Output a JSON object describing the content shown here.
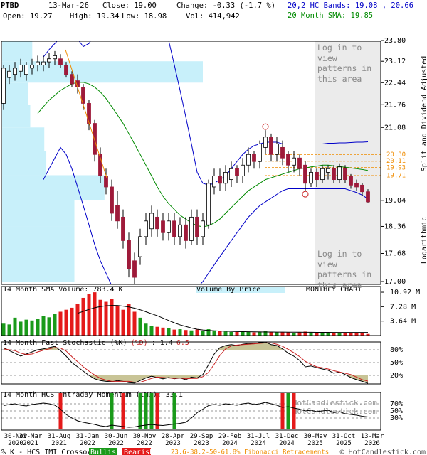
{
  "header": {
    "symbol": "PTBD",
    "date": "13-Mar-26",
    "close": "Close: 19.00",
    "change": "Change: -0.33 (-1.7 %)",
    "open": "Open: 19.27",
    "high": "High: 19.34",
    "low": "Low: 18.98",
    "volume": "Vol: 414,942",
    "bands_legend": "20,2 HC Bands: 19.08 , 20.66",
    "sma_legend": "20 Month SMA: 19.85",
    "adjusted": "Split and Dividend Adjusted",
    "scale": "Logarithmic"
  },
  "footer": {
    "crossover": "% K - HCS IMI Crossover,",
    "bullish": "Bullish",
    "bearish": "Bearish",
    "fibonacci": "23.6-38.2-50-61.8% Fibonacci Retracements",
    "copyright": "© HotCandlestick.com"
  },
  "chart_data": [
    {
      "type": "candlestick",
      "x": [
        "30-Nov 2020",
        null,
        null,
        null,
        "31-Mar 2021",
        null,
        null,
        null,
        null,
        "31-Aug 2021",
        null,
        null,
        null,
        null,
        "31-Jan 2022",
        null,
        null,
        null,
        null,
        "30-Jun 2022",
        null,
        null,
        null,
        null,
        "30-Nov 2022",
        null,
        null,
        null,
        null,
        "28-Apr 2023",
        null,
        null,
        null,
        null,
        "29-Sep 2023",
        null,
        null,
        null,
        null,
        "29-Feb 2024",
        null,
        null,
        null,
        null,
        "31-Jul 2024",
        null,
        null,
        null,
        null,
        "31-Dec 2024",
        null,
        null,
        null,
        null,
        "30-May 2025",
        null,
        null,
        null,
        null,
        "31-Oct 2025",
        null,
        null,
        null,
        null,
        "13-Mar 2026"
      ],
      "open": [
        21.8,
        22.6,
        22.7,
        22.8,
        22.7,
        22.9,
        23.0,
        23.0,
        23.1,
        23.2,
        23.2,
        23.0,
        22.7,
        22.5,
        22.3,
        21.8,
        21.2,
        20.3,
        19.7,
        19.4,
        18.9,
        18.6,
        18.0,
        17.5,
        17.6,
        18.1,
        18.3,
        18.6,
        18.5,
        18.2,
        18.5,
        18.1,
        18.4,
        18.0,
        18.6,
        18.1,
        18.4,
        19.4,
        19.7,
        19.5,
        19.6,
        19.9,
        19.7,
        20.0,
        20.3,
        20.1,
        20.5,
        20.8,
        20.3,
        20.5,
        20.3,
        20.0,
        20.2,
        20.0,
        19.5,
        19.8,
        19.6,
        19.8,
        19.9,
        19.6,
        19.9,
        19.7,
        19.5,
        19.45,
        19.27
      ],
      "high": [
        23.0,
        23.0,
        23.1,
        23.2,
        23.1,
        23.2,
        23.3,
        23.3,
        23.4,
        23.45,
        23.35,
        23.1,
        22.8,
        22.7,
        22.4,
        21.9,
        21.3,
        20.5,
        19.9,
        19.6,
        19.3,
        18.8,
        18.2,
        17.7,
        18.3,
        18.7,
        18.9,
        18.8,
        18.7,
        18.7,
        18.7,
        18.6,
        18.6,
        18.8,
        18.8,
        18.7,
        19.6,
        19.9,
        19.9,
        20.0,
        20.1,
        20.0,
        20.2,
        20.5,
        20.4,
        20.7,
        21.0,
        20.9,
        20.8,
        20.7,
        20.4,
        20.4,
        20.3,
        20.1,
        19.9,
        19.9,
        20.0,
        20.0,
        20.0,
        20.05,
        20.0,
        19.75,
        19.6,
        19.5,
        19.34
      ],
      "low": [
        21.6,
        22.4,
        22.5,
        22.6,
        22.5,
        22.7,
        22.8,
        22.8,
        22.9,
        23.0,
        22.9,
        22.6,
        22.3,
        22.1,
        21.6,
        21.0,
        20.1,
        19.5,
        19.2,
        18.5,
        18.3,
        17.8,
        17.1,
        16.9,
        17.4,
        17.9,
        18.1,
        18.1,
        18.0,
        18.0,
        17.9,
        17.9,
        17.8,
        17.9,
        17.9,
        17.9,
        18.3,
        19.2,
        19.3,
        19.3,
        19.4,
        19.5,
        19.5,
        19.8,
        19.9,
        19.9,
        20.3,
        20.1,
        20.1,
        20.0,
        19.8,
        19.8,
        19.7,
        19.3,
        19.4,
        19.4,
        19.5,
        19.6,
        19.5,
        19.5,
        19.5,
        19.35,
        19.3,
        19.15,
        18.98
      ],
      "close": [
        22.9,
        22.8,
        22.9,
        23.0,
        23.0,
        23.0,
        23.1,
        23.1,
        23.2,
        23.3,
        23.0,
        22.7,
        22.4,
        22.3,
        21.8,
        21.2,
        20.3,
        19.7,
        19.4,
        18.7,
        18.5,
        18.0,
        17.3,
        17.1,
        18.1,
        18.5,
        18.7,
        18.3,
        18.2,
        18.5,
        18.1,
        18.4,
        18.0,
        18.6,
        18.1,
        18.5,
        19.5,
        19.7,
        19.5,
        19.8,
        19.9,
        19.7,
        20.0,
        20.3,
        20.1,
        20.6,
        20.8,
        20.3,
        20.6,
        20.2,
        20.0,
        20.2,
        19.9,
        19.5,
        19.8,
        19.6,
        19.9,
        19.9,
        19.6,
        19.95,
        19.6,
        19.45,
        19.4,
        19.27,
        19.0
      ],
      "up_color": "#ffffff",
      "down_color": "#9e1a3a",
      "bands": {
        "color": "#0000c8",
        "upper": [
          null,
          null,
          null,
          null,
          null,
          null,
          null,
          23.26,
          23.5,
          23.7,
          23.9,
          24.0,
          24.0,
          23.85,
          23.6,
          23.7,
          24.0,
          24.4,
          24.7,
          24.9,
          25.0,
          25.0,
          25.0,
          24.9,
          24.8,
          24.6,
          24.4,
          24.2,
          24.0,
          23.8,
          23.0,
          22.2,
          21.4,
          20.6,
          19.8,
          19.5,
          19.45,
          19.5,
          19.6,
          19.7,
          19.9,
          20.1,
          20.3,
          20.45,
          20.55,
          20.6,
          20.65,
          20.65,
          20.65,
          20.6,
          20.6,
          20.6,
          20.6,
          20.6,
          20.6,
          20.6,
          20.6,
          20.62,
          20.62,
          20.63,
          20.63,
          20.64,
          20.65,
          20.65,
          20.66
        ],
        "lower": [
          null,
          null,
          null,
          null,
          null,
          null,
          null,
          19.6,
          19.9,
          20.2,
          20.5,
          20.3,
          19.9,
          19.4,
          18.9,
          18.4,
          17.9,
          17.5,
          17.2,
          16.9,
          16.6,
          16.4,
          16.2,
          16.1,
          16.0,
          16.0,
          16.0,
          16.1,
          16.2,
          16.3,
          16.4,
          16.5,
          16.6,
          16.7,
          16.85,
          17.0,
          17.2,
          17.4,
          17.6,
          17.8,
          18.0,
          18.2,
          18.4,
          18.6,
          18.75,
          18.9,
          19.0,
          19.1,
          19.2,
          19.3,
          19.35,
          19.35,
          19.35,
          19.35,
          19.35,
          19.35,
          19.35,
          19.35,
          19.35,
          19.35,
          19.35,
          19.3,
          19.25,
          19.18,
          19.08
        ]
      },
      "sma": {
        "color": "#008a00",
        "values": [
          null,
          null,
          null,
          null,
          null,
          null,
          21.5,
          21.7,
          21.9,
          22.05,
          22.2,
          22.3,
          22.4,
          22.45,
          22.45,
          22.4,
          22.3,
          22.15,
          21.95,
          21.7,
          21.45,
          21.2,
          20.9,
          20.6,
          20.3,
          20.0,
          19.7,
          19.4,
          19.15,
          18.95,
          18.8,
          18.65,
          18.55,
          18.45,
          18.38,
          18.35,
          18.38,
          18.45,
          18.55,
          18.7,
          18.85,
          19.0,
          19.15,
          19.3,
          19.4,
          19.5,
          19.6,
          19.65,
          19.7,
          19.75,
          19.8,
          19.85,
          19.9,
          19.92,
          19.95,
          19.97,
          20.0,
          20.0,
          19.98,
          19.96,
          19.94,
          19.92,
          19.9,
          19.88,
          19.85
        ]
      },
      "fib_levels": [
        {
          "value": 20.3,
          "label": "20.30"
        },
        {
          "value": 20.11,
          "label": "20.11"
        },
        {
          "value": 19.93,
          "label": "19.93"
        },
        {
          "value": 19.71,
          "label": "19.71"
        }
      ],
      "fib_color": "#f08c00",
      "volume_by_price": {
        "color": "#c8f0fa",
        "xlim": [
          0,
          100
        ],
        "bins": [
          17.0,
          17.68,
          18.36,
          19.04,
          19.72,
          20.4,
          21.08,
          21.76,
          22.44,
          23.12,
          23.8
        ],
        "values": [
          36,
          36,
          36,
          51,
          22,
          21,
          14,
          13,
          100,
          15
        ]
      },
      "annotations": [
        "Log in to view patterns in this area",
        "Log in to view patterns in this area"
      ],
      "log": true,
      "ylim": [
        17.0,
        23.8
      ],
      "yticks": [
        {
          "value": 17.0,
          "label": "17.00"
        },
        {
          "value": 17.68,
          "label": "17.68"
        },
        {
          "value": 18.36,
          "label": "18.36"
        },
        {
          "value": 19.04,
          "label": "19.04"
        },
        {
          "value": 21.08,
          "label": "21.08"
        },
        {
          "value": 21.76,
          "label": "21.76"
        },
        {
          "value": 22.44,
          "label": "22.44"
        },
        {
          "value": 23.12,
          "label": "23.12"
        },
        {
          "value": 23.8,
          "label": "23.80"
        }
      ]
    },
    {
      "type": "bar",
      "title": "14 Month SMA Volume: 783.4 K",
      "subtitle": "Volume By Price",
      "chart_label": "MONTHLY CHART",
      "up_color": "#1a9a1a",
      "down_color": "#e41a1a",
      "values": [
        3.0,
        2.8,
        4.5,
        3.5,
        4.0,
        3.8,
        4.2,
        5.0,
        4.6,
        5.5,
        6.0,
        6.5,
        7.0,
        8.0,
        9.5,
        10.5,
        10.9,
        9.0,
        8.5,
        9.2,
        7.5,
        6.5,
        8.0,
        6.0,
        4.5,
        3.0,
        2.5,
        2.2,
        2.0,
        1.8,
        1.5,
        1.6,
        1.4,
        1.3,
        1.5,
        1.2,
        1.6,
        1.3,
        1.1,
        1.0,
        0.9,
        0.9,
        1.0,
        0.9,
        0.8,
        1.0,
        1.1,
        0.9,
        0.8,
        0.9,
        0.8,
        0.7,
        0.8,
        1.0,
        0.8,
        0.7,
        0.7,
        0.8,
        0.7,
        0.7,
        0.6,
        0.7,
        0.6,
        0.7,
        0.4
      ],
      "sma_values": [
        null,
        null,
        null,
        null,
        null,
        null,
        null,
        null,
        null,
        null,
        null,
        null,
        null,
        5.6,
        6.1,
        6.6,
        7.0,
        7.3,
        7.5,
        7.6,
        7.6,
        7.4,
        7.2,
        6.9,
        6.5,
        6.0,
        5.5,
        5.0,
        4.4,
        3.8,
        3.2,
        2.7,
        2.3,
        1.9,
        1.6,
        1.4,
        1.3,
        1.2,
        1.15,
        1.1,
        1.05,
        1.0,
        0.98,
        0.96,
        0.94,
        0.92,
        0.9,
        0.89,
        0.88,
        0.87,
        0.86,
        0.85,
        0.84,
        0.83,
        0.82,
        0.81,
        0.8,
        0.8,
        0.79,
        0.79,
        0.79,
        0.785,
        0.785,
        0.784,
        0.7834
      ],
      "ylim": [
        0,
        12
      ],
      "yticks": [
        {
          "value": 3.64,
          "label": "3.64 M"
        },
        {
          "value": 7.28,
          "label": "7.28 M"
        },
        {
          "value": 10.92,
          "label": "10.92 M"
        }
      ]
    },
    {
      "type": "line",
      "title_parts": [
        "14 Month Fast Stochastic (%K)",
        "(%D)",
        ": 1.4",
        "6.5"
      ],
      "shade_color": "#c8c496",
      "grid": true,
      "series": [
        {
          "color": "#000000",
          "values": [
            85,
            78,
            72,
            65,
            70,
            75,
            80,
            82,
            85,
            88,
            78,
            65,
            50,
            40,
            30,
            20,
            12,
            8,
            6,
            5,
            8,
            6,
            3,
            2,
            8,
            14,
            18,
            15,
            12,
            15,
            12,
            14,
            10,
            16,
            14,
            22,
            45,
            70,
            85,
            90,
            92,
            90,
            93,
            95,
            94,
            97,
            98,
            92,
            90,
            82,
            72,
            65,
            55,
            40,
            42,
            38,
            35,
            32,
            25,
            28,
            22,
            15,
            10,
            6,
            1.4
          ]
        },
        {
          "color": "#c81e1e",
          "values": [
            82,
            80,
            78,
            72,
            69,
            70,
            75,
            79,
            82,
            85,
            84,
            77,
            64,
            52,
            40,
            30,
            21,
            13,
            9,
            6,
            6,
            6,
            6,
            4,
            4,
            8,
            13,
            16,
            15,
            14,
            13,
            14,
            12,
            13,
            13,
            17,
            27,
            46,
            67,
            82,
            89,
            91,
            92,
            93,
            94,
            95,
            96,
            96,
            93,
            88,
            81,
            73,
            64,
            53,
            46,
            40,
            38,
            35,
            31,
            28,
            25,
            22,
            16,
            10,
            6.5
          ]
        }
      ],
      "ylim": [
        0,
        100
      ],
      "yticks": [
        {
          "value": 20,
          "label": "20%"
        },
        {
          "value": 50,
          "label": "50%"
        },
        {
          "value": 80,
          "label": "80%"
        }
      ]
    },
    {
      "type": "line",
      "title_parts": [
        "14 Month HCS Intraday Momentum (IMI): 33.1"
      ],
      "watermark": [
        "HotCandlestick.com",
        "HotCandlestick.com"
      ],
      "grid": true,
      "series": [
        {
          "name": "Bullish",
          "type": "bar",
          "color": "#1a9a1a",
          "values": [
            null,
            null,
            null,
            null,
            null,
            null,
            null,
            null,
            null,
            null,
            null,
            null,
            null,
            null,
            null,
            null,
            null,
            null,
            null,
            100,
            null,
            null,
            null,
            null,
            100,
            100,
            100,
            null,
            null,
            null,
            100,
            null,
            null,
            null,
            null,
            null,
            null,
            null,
            null,
            null,
            null,
            null,
            null,
            null,
            null,
            null,
            null,
            null,
            null,
            null,
            100,
            null,
            null,
            null,
            null,
            null,
            null,
            null,
            null,
            null,
            null,
            null,
            null,
            null,
            null
          ]
        },
        {
          "name": "Bearish",
          "type": "bar",
          "color": "#e41a1a",
          "values": [
            null,
            null,
            null,
            null,
            null,
            null,
            null,
            null,
            null,
            null,
            100,
            null,
            null,
            null,
            null,
            null,
            null,
            null,
            null,
            null,
            null,
            100,
            null,
            null,
            null,
            null,
            null,
            100,
            null,
            null,
            null,
            null,
            null,
            null,
            null,
            null,
            null,
            null,
            null,
            null,
            null,
            null,
            null,
            null,
            null,
            null,
            null,
            null,
            null,
            100,
            null,
            100,
            null,
            null,
            null,
            null,
            null,
            null,
            null,
            null,
            null,
            null,
            null,
            null,
            null
          ]
        },
        {
          "color": "#000000",
          "values": [
            65,
            68,
            70,
            66,
            64,
            68,
            70,
            72,
            70,
            66,
            55,
            40,
            30,
            22,
            18,
            15,
            12,
            8,
            6,
            10,
            8,
            6,
            4,
            5,
            8,
            10,
            12,
            10,
            9,
            11,
            13,
            15,
            18,
            30,
            45,
            55,
            65,
            68,
            66,
            70,
            68,
            66,
            70,
            72,
            68,
            70,
            74,
            70,
            66,
            60,
            62,
            58,
            55,
            50,
            52,
            48,
            50,
            52,
            45,
            48,
            42,
            40,
            38,
            35,
            33.1
          ]
        }
      ],
      "ylim": [
        0,
        100
      ],
      "yticks": [
        {
          "value": 30,
          "label": "30%"
        },
        {
          "value": 50,
          "label": "50%"
        },
        {
          "value": 70,
          "label": "70%"
        }
      ]
    }
  ]
}
